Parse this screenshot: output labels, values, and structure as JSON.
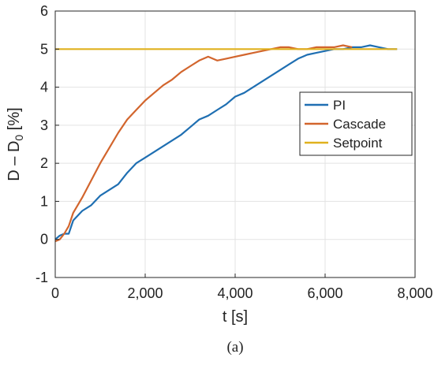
{
  "chart_data": {
    "type": "line",
    "xlabel": "t [s]",
    "ylabel": "D – D",
    "ylabel_subscript": "0",
    "ylabel_unit": " [%]",
    "xlim": [
      0,
      8000
    ],
    "ylim": [
      -1,
      6
    ],
    "x_ticks": [
      0,
      2000,
      4000,
      6000,
      8000
    ],
    "x_tick_labels": [
      "0",
      "2,000",
      "4,000",
      "6,000",
      "8,000"
    ],
    "y_ticks": [
      -1,
      0,
      1,
      2,
      3,
      4,
      5,
      6
    ],
    "y_tick_labels": [
      "-1",
      "0",
      "1",
      "2",
      "3",
      "4",
      "5",
      "6"
    ],
    "grid": true,
    "legend_position": "right",
    "series": [
      {
        "name": "PI",
        "color": "#1f6fb2",
        "x": [
          0,
          100,
          200,
          300,
          400,
          600,
          800,
          1000,
          1200,
          1400,
          1600,
          1800,
          2000,
          2200,
          2400,
          2600,
          2800,
          3000,
          3200,
          3400,
          3600,
          3800,
          4000,
          4200,
          4400,
          4600,
          4800,
          5000,
          5200,
          5400,
          5600,
          5800,
          6000,
          6200,
          6400,
          6600,
          6800,
          7000,
          7200,
          7400,
          7600
        ],
        "y": [
          0.0,
          0.1,
          0.15,
          0.15,
          0.5,
          0.75,
          0.9,
          1.15,
          1.3,
          1.45,
          1.75,
          2.0,
          2.15,
          2.3,
          2.45,
          2.6,
          2.75,
          2.95,
          3.15,
          3.25,
          3.4,
          3.55,
          3.75,
          3.85,
          4.0,
          4.15,
          4.3,
          4.45,
          4.6,
          4.75,
          4.85,
          4.9,
          4.95,
          5.0,
          5.0,
          5.05,
          5.05,
          5.1,
          5.05,
          5.0,
          5.0
        ]
      },
      {
        "name": "Cascade",
        "color": "#d2652d",
        "x": [
          0,
          100,
          200,
          300,
          400,
          600,
          800,
          1000,
          1200,
          1400,
          1600,
          1800,
          2000,
          2200,
          2400,
          2600,
          2800,
          3000,
          3200,
          3400,
          3600,
          3800,
          4000,
          4200,
          4400,
          4600,
          4800,
          5000,
          5200,
          5400,
          5600,
          5800,
          6000,
          6200,
          6400,
          6600
        ],
        "y": [
          -0.05,
          0.0,
          0.15,
          0.35,
          0.7,
          1.1,
          1.55,
          2.0,
          2.4,
          2.8,
          3.15,
          3.4,
          3.65,
          3.85,
          4.05,
          4.2,
          4.4,
          4.55,
          4.7,
          4.8,
          4.7,
          4.75,
          4.8,
          4.85,
          4.9,
          4.95,
          5.0,
          5.05,
          5.05,
          5.0,
          5.0,
          5.05,
          5.05,
          5.05,
          5.1,
          5.05
        ]
      },
      {
        "name": "Setpoint",
        "color": "#e0b11e",
        "x": [
          0,
          7600
        ],
        "y": [
          5.0,
          5.0
        ]
      }
    ]
  },
  "caption": "(a)"
}
